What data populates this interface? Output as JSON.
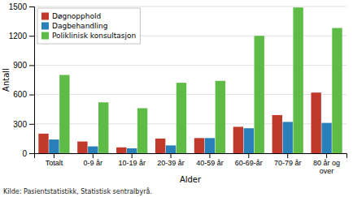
{
  "chart_data": {
    "type": "bar",
    "categories": [
      "Totalt",
      "0-9 år",
      "10-19 år",
      "20-39 år",
      "40-59 år",
      "60-69-år",
      "70-79 år",
      "80 år og\nover"
    ],
    "series": [
      {
        "name": "Døgnopphold",
        "color": "#c0392b",
        "values": [
          200,
          120,
          60,
          150,
          155,
          270,
          390,
          620
        ]
      },
      {
        "name": "Dagbehandling",
        "color": "#2980b9",
        "values": [
          140,
          70,
          50,
          80,
          155,
          255,
          320,
          310
        ]
      },
      {
        "name": "Poliklinisk konsultasjon",
        "color": "#5dbb46",
        "values": [
          800,
          520,
          460,
          720,
          740,
          1200,
          1490,
          1280
        ]
      }
    ],
    "xlabel": "Alder",
    "ylabel": "Antall",
    "ylim": [
      0,
      1500
    ],
    "yticks": [
      0,
      300,
      600,
      900,
      1200,
      1500
    ],
    "grid": true,
    "legend": "upper left",
    "annotations": [
      "Kilde: Pasientstatistikk, Statistisk sentralbyrå."
    ]
  }
}
